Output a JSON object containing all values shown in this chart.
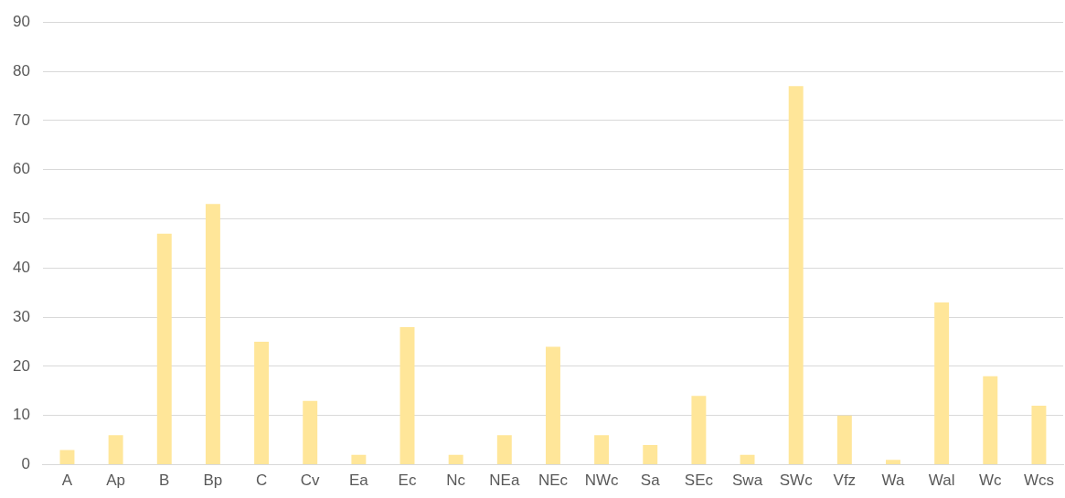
{
  "chart_data": {
    "type": "bar",
    "categories": [
      "A",
      "Ap",
      "B",
      "Bp",
      "C",
      "Cv",
      "Ea",
      "Ec",
      "Nc",
      "NEa",
      "NEc",
      "NWc",
      "Sa",
      "SEc",
      "Swa",
      "SWc",
      "Vfz",
      "Wa",
      "Wal",
      "Wc",
      "Wcs"
    ],
    "values": [
      3,
      6,
      47,
      53,
      25,
      13,
      2,
      28,
      2,
      6,
      24,
      6,
      4,
      14,
      2,
      77,
      10,
      1,
      33,
      18,
      12
    ],
    "color": "#ffe699",
    "ylim": [
      0,
      90
    ],
    "yticks": [
      0,
      10,
      20,
      30,
      40,
      50,
      60,
      70,
      80,
      90
    ],
    "grid": "y"
  }
}
